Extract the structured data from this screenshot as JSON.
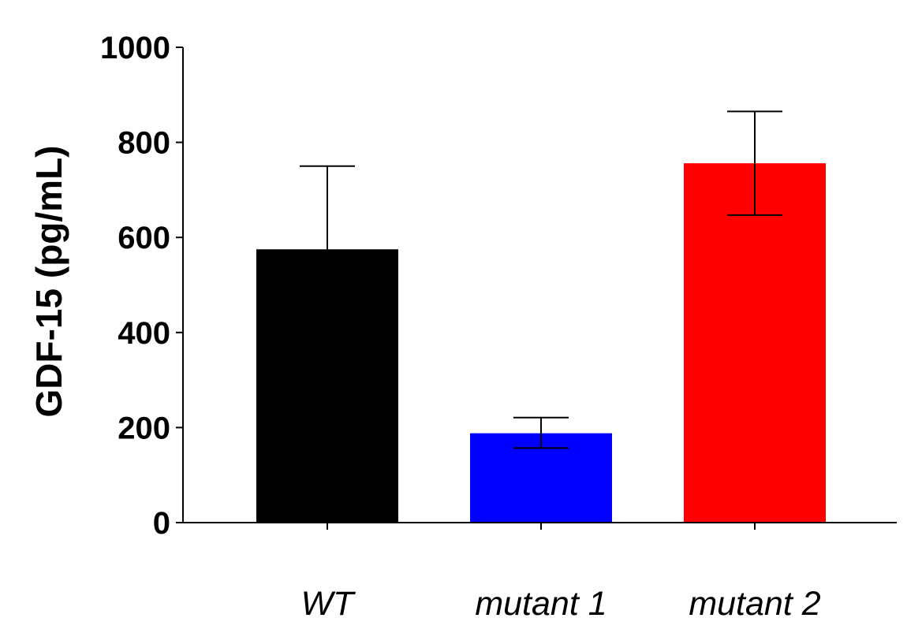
{
  "chart_data": {
    "type": "bar",
    "categories": [
      "WT",
      "mutant 1",
      "mutant 2"
    ],
    "values": [
      575,
      188,
      756
    ],
    "error_high": [
      750,
      221,
      865
    ],
    "error_low": [
      575,
      157,
      647
    ],
    "colors": [
      "#000000",
      "#0000ff",
      "#ff0000"
    ],
    "title": "",
    "xlabel": "",
    "ylabel": "GDF-15 (pg/mL)",
    "ylim": [
      0,
      1000
    ],
    "yticks": [
      "0",
      "200",
      "400",
      "600",
      "800",
      "1000"
    ],
    "grid": false,
    "legend": "none"
  }
}
